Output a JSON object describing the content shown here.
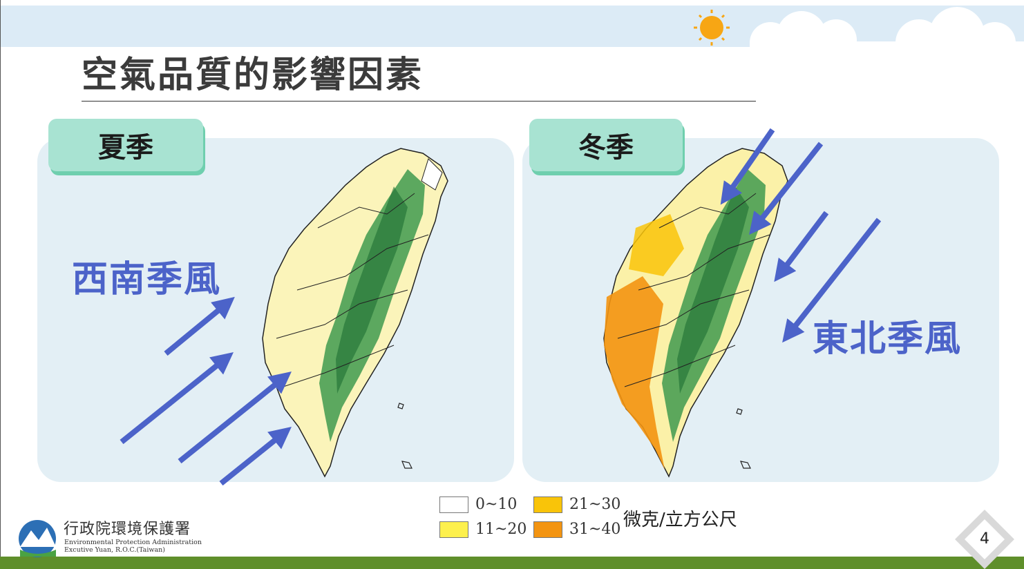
{
  "slide": {
    "title": "空氣品質的影響因素",
    "page_number": "4"
  },
  "panels": {
    "summer": {
      "tab_label": "夏季",
      "wind_label": "西南季風"
    },
    "winter": {
      "tab_label": "冬季",
      "wind_label": "東北季風"
    }
  },
  "legend": {
    "items": [
      {
        "label": "0~10",
        "color": "#ffffff"
      },
      {
        "label": "11~20",
        "color": "#fdf04d"
      },
      {
        "label": "21~30",
        "color": "#f9c409"
      },
      {
        "label": "31~40",
        "color": "#f39411"
      }
    ],
    "unit": "微克/立方公尺"
  },
  "organization": {
    "name_zh": "行政院環境保護署",
    "name_en_line1": "Environmental Protection Administration",
    "name_en_line2": "Excutive Yuan, R.O.C.(Taiwan)"
  },
  "colors": {
    "arrow": "#4c63c9",
    "tab_fill": "#a8e3d2",
    "panel_fill": "#e3eff5",
    "terrain": "#3f9a4f"
  }
}
